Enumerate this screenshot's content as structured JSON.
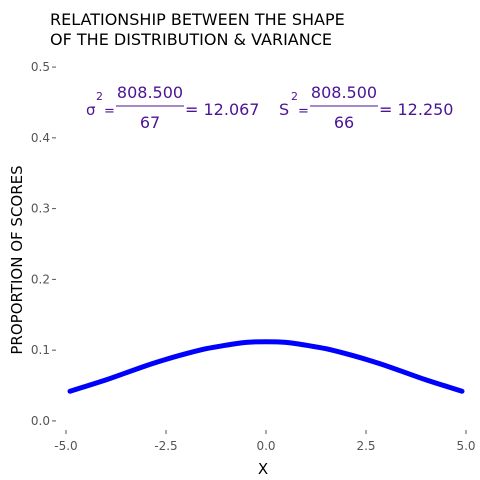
{
  "chart_data": {
    "type": "line",
    "title_lines": [
      "RELATIONSHIP BETWEEN THE SHAPE",
      "OF THE DISTRIBUTION & VARIANCE"
    ],
    "xlabel": "X",
    "ylabel": "PROPORTION OF SCORES",
    "xlim": [
      -5.2,
      5.0
    ],
    "ylim": [
      -0.01,
      0.51
    ],
    "x_ticks": [
      -5.0,
      -2.5,
      0.0,
      2.5,
      5.0
    ],
    "x_tick_labels": [
      "-5.0",
      "-2.5",
      "0.0",
      "2.5",
      "5.0"
    ],
    "y_ticks": [
      0.0,
      0.1,
      0.2,
      0.3,
      0.4,
      0.5
    ],
    "y_tick_labels": [
      "0.0",
      "0.1",
      "0.2",
      "0.3",
      "0.4",
      "0.5"
    ],
    "grid": false,
    "line_color": "#0000ff",
    "series": [
      {
        "x": [
          -4.9,
          -4.5,
          -4.0,
          -3.5,
          -3.0,
          -2.5,
          -2.0,
          -1.5,
          -1.0,
          -0.5,
          0.0,
          0.5,
          1.0,
          1.5,
          2.0,
          2.5,
          3.0,
          3.5,
          4.0,
          4.5,
          4.9
        ],
        "values": [
          0.042,
          0.049,
          0.058,
          0.068,
          0.078,
          0.087,
          0.095,
          0.102,
          0.107,
          0.111,
          0.112,
          0.111,
          0.107,
          0.102,
          0.095,
          0.087,
          0.078,
          0.068,
          0.058,
          0.049,
          0.042
        ]
      }
    ],
    "formulas": {
      "population": {
        "symbol": "σ",
        "exponent": "2",
        "equals": "=",
        "numerator": "808.500",
        "denominator": "67",
        "result": "= 12.067"
      },
      "sample": {
        "symbol": "S",
        "exponent": "2",
        "equals": "=",
        "numerator": "808.500",
        "denominator": "66",
        "result": "= 12.250"
      }
    }
  }
}
